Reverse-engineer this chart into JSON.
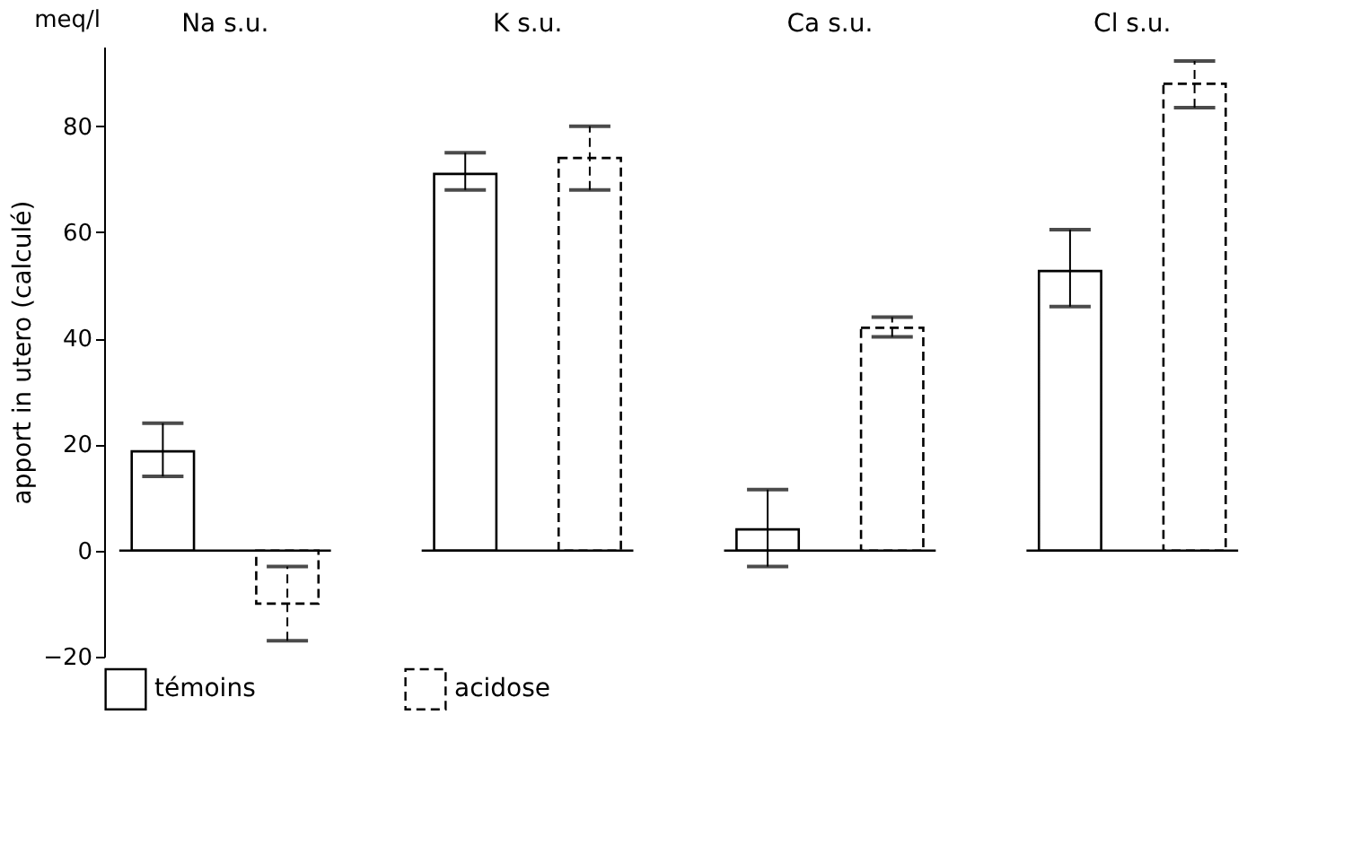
{
  "chart_data": {
    "type": "bar",
    "categories": [
      "Na s.u.",
      "K s.u.",
      "Ca s.u.",
      "Cl s.u."
    ],
    "ylabel": "apport in utero (calculé)",
    "annotations": [
      "meq/l"
    ],
    "ylim": [
      -20,
      95
    ],
    "yticks": [
      -20,
      0,
      20,
      40,
      60,
      80
    ],
    "legend": "bottom",
    "ref_lines": [
      {
        "axis": "y",
        "value": 0
      }
    ],
    "series": [
      {
        "name": "témoins",
        "color": "#000000",
        "line_style": "solid",
        "values": [
          18.7,
          71,
          4,
          52.7
        ],
        "errors": [
          [
            14,
            24
          ],
          [
            68,
            75
          ],
          [
            -3,
            11.5
          ],
          [
            46,
            60.5
          ]
        ]
      },
      {
        "name": "acidose",
        "color": "#000000",
        "line_style": "dashed",
        "values": [
          -10,
          74,
          42,
          88
        ],
        "errors": [
          [
            -17,
            -3
          ],
          [
            68,
            80
          ],
          [
            40.3,
            44
          ],
          [
            83.5,
            92.3
          ]
        ]
      }
    ]
  }
}
